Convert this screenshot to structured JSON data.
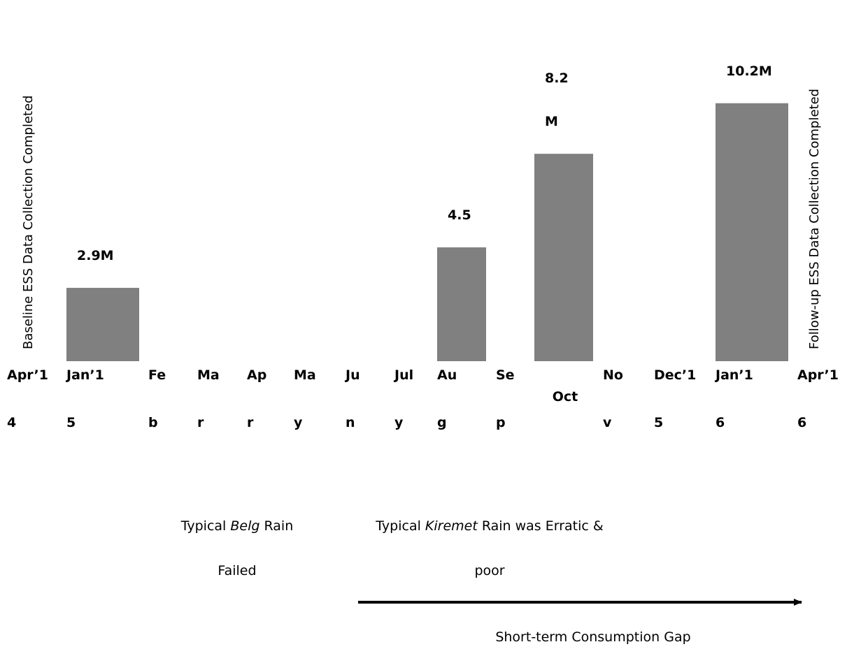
{
  "chart_data": {
    "type": "bar",
    "title": "",
    "xlabel": "",
    "ylabel": "",
    "ylim": [
      0,
      12
    ],
    "categories": [
      {
        "lines": [
          "Apr’1",
          "4"
        ]
      },
      {
        "lines": [
          "Jan’1",
          "5"
        ]
      },
      {
        "lines": [
          "Fe",
          "b"
        ]
      },
      {
        "lines": [
          "Ma",
          "r"
        ]
      },
      {
        "lines": [
          "Ap",
          "r"
        ]
      },
      {
        "lines": [
          "Ma",
          "y"
        ]
      },
      {
        "lines": [
          "Ju",
          "n"
        ]
      },
      {
        "lines": [
          "Jul",
          "y"
        ]
      },
      {
        "lines": [
          "Au",
          "g"
        ]
      },
      {
        "lines": [
          "Se",
          "p"
        ]
      },
      {
        "lines": [
          "Oct"
        ]
      },
      {
        "lines": [
          "No",
          "v"
        ]
      },
      {
        "lines": [
          "Dec’1",
          "5"
        ]
      },
      {
        "lines": [
          "Jan’1",
          "6"
        ]
      },
      {
        "lines": [
          "Apr’1",
          "6"
        ]
      }
    ],
    "values": [
      null,
      2.9,
      null,
      null,
      null,
      null,
      null,
      null,
      4.5,
      null,
      8.2,
      null,
      null,
      10.2,
      null
    ],
    "data_labels": [
      null,
      {
        "lines": [
          "2.9M"
        ]
      },
      null,
      null,
      null,
      null,
      null,
      null,
      {
        "lines": [
          "4.5"
        ]
      },
      null,
      {
        "lines": [
          "8.2",
          "M"
        ]
      },
      null,
      null,
      {
        "lines": [
          "10.2M"
        ]
      },
      null
    ],
    "bar_color": "#808080",
    "grid": false,
    "legend": "none",
    "annotations": {
      "baseline": "Baseline ESS Data Collection Completed",
      "followup": "Follow-up ESS Data Collection Completed",
      "belg": {
        "pre": "Typical ",
        "em": "Belg",
        "post": " Rain",
        "line2": "Failed"
      },
      "kiremet": {
        "pre": "Typical ",
        "em": "Kiremet",
        "post": " Rain was Erratic &",
        "line2": "poor"
      },
      "gap": "Short-term Consumption Gap"
    }
  }
}
